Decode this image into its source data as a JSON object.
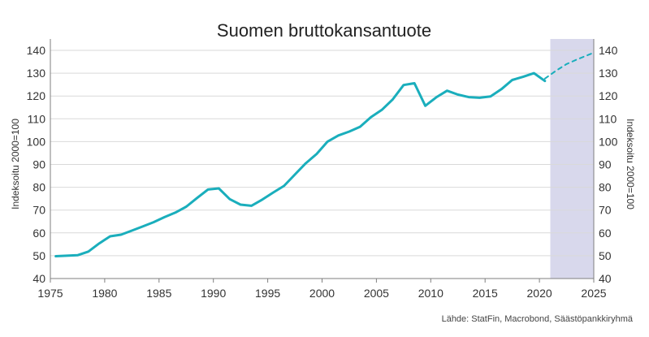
{
  "chart_data": {
    "type": "line",
    "title": "Suomen bruttokansantuote",
    "ylabel_left": "Indeksoitu 2000=100",
    "ylabel_right": "Indeksoitu 2000=100",
    "xlabel": "",
    "source": "Lähde: StatFin, Macrobond, Säästöpankkiryhmä",
    "xlim": [
      1975,
      2025
    ],
    "ylim": [
      40,
      140
    ],
    "x_ticks": [
      "1975",
      "1980",
      "1985",
      "1990",
      "1995",
      "2000",
      "2005",
      "2010",
      "2015",
      "2020",
      "2025"
    ],
    "y_ticks": [
      "40",
      "50",
      "60",
      "70",
      "80",
      "90",
      "100",
      "110",
      "120",
      "130",
      "140"
    ],
    "grid": "horizontal",
    "forecast_shading": {
      "from": 2021,
      "to": 2025,
      "color": "#d8d8ec"
    },
    "series": [
      {
        "style": "solid",
        "color": "#1aaebc",
        "points": [
          [
            1975.5,
            49.8
          ],
          [
            1976.5,
            50.0
          ],
          [
            1977.5,
            50.2
          ],
          [
            1978.5,
            51.8
          ],
          [
            1979.5,
            55.4
          ],
          [
            1980.5,
            58.5
          ],
          [
            1981.5,
            59.2
          ],
          [
            1982.5,
            61.0
          ],
          [
            1983.5,
            62.8
          ],
          [
            1984.5,
            64.7
          ],
          [
            1985.5,
            66.9
          ],
          [
            1986.5,
            68.9
          ],
          [
            1987.5,
            71.5
          ],
          [
            1988.5,
            75.3
          ],
          [
            1989.5,
            79.0
          ],
          [
            1990.5,
            79.5
          ],
          [
            1991.5,
            74.8
          ],
          [
            1992.5,
            72.4
          ],
          [
            1993.5,
            71.9
          ],
          [
            1994.5,
            74.6
          ],
          [
            1995.5,
            77.7
          ],
          [
            1996.5,
            80.6
          ],
          [
            1997.5,
            85.6
          ],
          [
            1998.5,
            90.5
          ],
          [
            1999.5,
            94.6
          ],
          [
            2000.5,
            100.0
          ],
          [
            2001.5,
            102.7
          ],
          [
            2002.5,
            104.4
          ],
          [
            2003.5,
            106.5
          ],
          [
            2004.5,
            110.7
          ],
          [
            2005.5,
            113.9
          ],
          [
            2006.5,
            118.5
          ],
          [
            2007.5,
            124.8
          ],
          [
            2008.5,
            125.6
          ],
          [
            2009.5,
            115.7
          ],
          [
            2010.5,
            119.4
          ],
          [
            2011.5,
            122.3
          ],
          [
            2012.5,
            120.6
          ],
          [
            2013.5,
            119.5
          ],
          [
            2014.5,
            119.2
          ],
          [
            2015.5,
            119.8
          ],
          [
            2016.5,
            123.0
          ],
          [
            2017.5,
            127.0
          ],
          [
            2018.5,
            128.4
          ],
          [
            2019.5,
            130.0
          ],
          [
            2020.5,
            126.6
          ]
        ]
      },
      {
        "style": "dashed",
        "color": "#1aaebc",
        "points": [
          [
            2020.5,
            127.6
          ],
          [
            2021.5,
            131.0
          ],
          [
            2022.5,
            134.0
          ],
          [
            2023.5,
            136.1
          ],
          [
            2024.5,
            138.0
          ],
          [
            2025.0,
            139.0
          ]
        ]
      }
    ]
  }
}
